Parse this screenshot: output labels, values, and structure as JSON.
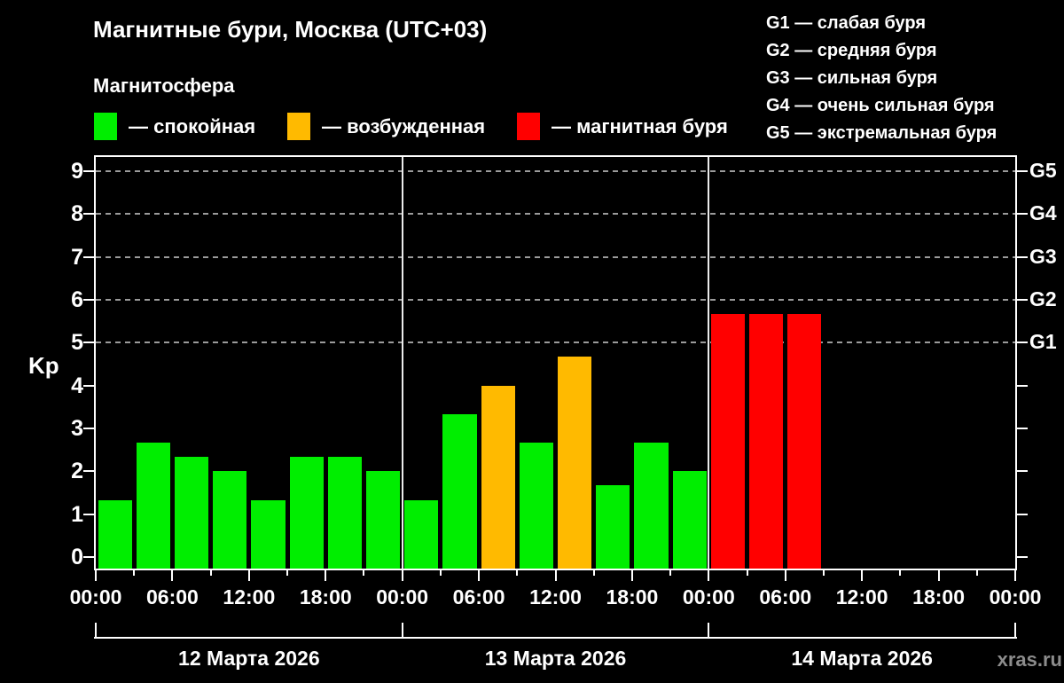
{
  "title": "Магнитные бури, Москва (UTC+03)",
  "subtitle": "Магнитосфера",
  "legend": {
    "items": [
      {
        "label": "— спокойная",
        "status": "quiet",
        "color": "#00ee00"
      },
      {
        "label": "— возбужденная",
        "status": "excited",
        "color": "#ffba00"
      },
      {
        "label": "— магнитная буря",
        "status": "storm",
        "color": "#ff0000"
      }
    ]
  },
  "storm_scale_legend": [
    "G1 — слабая буря",
    "G2 — средняя буря",
    "G3 — сильная буря",
    "G4 — очень сильная буря",
    "G5 — экстремальная буря"
  ],
  "watermark": "xras.ru",
  "chart_data": {
    "type": "bar",
    "ylabel": "Kp",
    "ylim": [
      0,
      9
    ],
    "y_ticks": [
      0,
      1,
      2,
      3,
      4,
      5,
      6,
      7,
      8,
      9
    ],
    "grid_levels": [
      5,
      6,
      7,
      8,
      9
    ],
    "grid_style": "dashed",
    "legend_position": "top-left",
    "right_axis": [
      {
        "value": 5,
        "label": "G1"
      },
      {
        "value": 6,
        "label": "G2"
      },
      {
        "value": 7,
        "label": "G3"
      },
      {
        "value": 8,
        "label": "G4"
      },
      {
        "value": 9,
        "label": "G5"
      }
    ],
    "bar_interval_hours": 3,
    "x_tick_step_hours": 6,
    "x_tick_labels": [
      "00:00",
      "06:00",
      "12:00",
      "18:00",
      "00:00",
      "06:00",
      "12:00",
      "18:00",
      "00:00",
      "06:00",
      "12:00",
      "18:00",
      "00:00"
    ],
    "palette": {
      "quiet": "#00ee00",
      "excited": "#ffba00",
      "storm": "#ff0000"
    },
    "axis_color": "#ffffff",
    "grid_color": "#9b9b9b",
    "days": [
      {
        "date": "12 Марта 2026",
        "kp": [
          1.33,
          2.67,
          2.33,
          2.0,
          1.33,
          2.33,
          2.33,
          2.0
        ],
        "status": [
          "quiet",
          "quiet",
          "quiet",
          "quiet",
          "quiet",
          "quiet",
          "quiet",
          "quiet"
        ]
      },
      {
        "date": "13 Марта 2026",
        "kp": [
          1.33,
          3.33,
          4.0,
          2.67,
          4.67,
          1.67,
          2.67,
          2.0
        ],
        "status": [
          "quiet",
          "quiet",
          "excited",
          "quiet",
          "excited",
          "quiet",
          "quiet",
          "quiet"
        ]
      },
      {
        "date": "14 Марта 2026",
        "kp": [
          5.67,
          5.67,
          5.67
        ],
        "status": [
          "storm",
          "storm",
          "storm"
        ]
      }
    ]
  }
}
